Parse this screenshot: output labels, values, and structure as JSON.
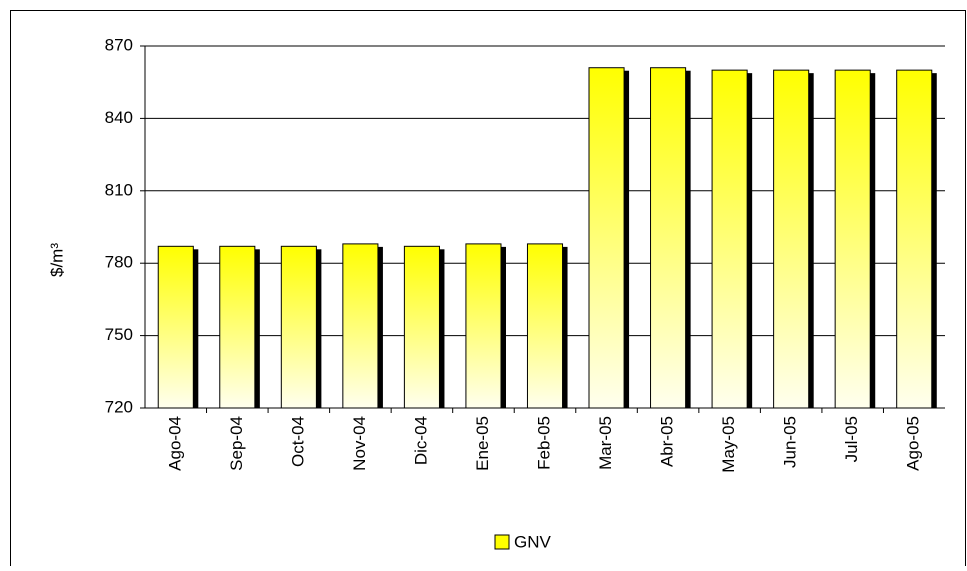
{
  "chart_data": {
    "type": "bar",
    "y_label": "$/m³",
    "categories": [
      "Ago-04",
      "Sep-04",
      "Oct-04",
      "Nov-04",
      "Dic-04",
      "Ene-05",
      "Feb-05",
      "Mar-05",
      "Abr-05",
      "May-05",
      "Jun-05",
      "Jul-05",
      "Ago-05"
    ],
    "series": [
      {
        "name": "GNV",
        "color": "#ffff00",
        "values": [
          787,
          787,
          787,
          788,
          787,
          788,
          788,
          861,
          861,
          860,
          860,
          860,
          860
        ]
      }
    ],
    "ylim": [
      720,
      870
    ],
    "yticks": [
      720,
      750,
      780,
      810,
      840,
      870
    ],
    "grid": true,
    "legend": "bottom"
  }
}
